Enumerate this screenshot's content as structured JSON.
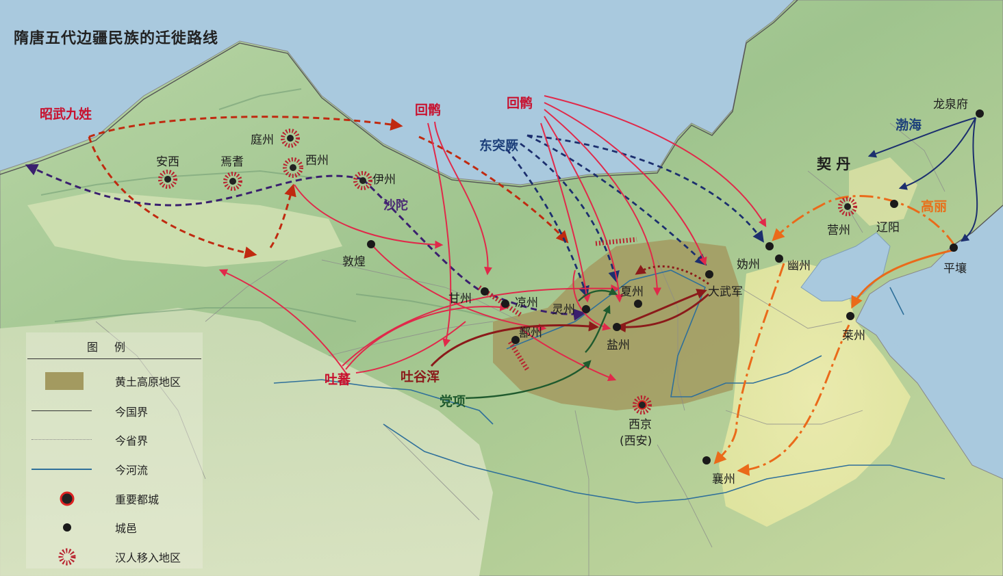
{
  "title": "隋唐五代边疆民族的迁徙路线",
  "colors": {
    "route_red": "#e0294a",
    "route_darkred": "#c02a10",
    "route_purple": "#3a1f6e",
    "route_navy": "#1c2f6e",
    "route_orange": "#ea6a1a",
    "route_brown": "#8b1a1a",
    "route_green": "#1f5a2e",
    "loess": "#a39a60"
  },
  "peoples": {
    "zhaowu": "昭武九姓",
    "huihu1": "回鹘",
    "huihu2": "回鹘",
    "dongtujue": "东突厥",
    "shatuo": "沙陀",
    "tubo": "吐蕃",
    "tuguhun": "吐谷浑",
    "dangxiang": "党项",
    "bohai": "渤海",
    "qidan": "契 丹",
    "gaoli": "高丽"
  },
  "places": {
    "tingzhou": "庭州",
    "anxi": "安西",
    "yanqi": "焉耆",
    "xizhou": "西州",
    "yizhou": "伊州",
    "dunhuang": "敦煌",
    "ganzhou": "甘州",
    "liangzhou": "凉州",
    "lingzhou": "灵州",
    "xiazhou": "夏州",
    "yanzhou": "盐州",
    "shanzhou": "鄯州",
    "dawujun": "大武军",
    "guizhou": "妫州",
    "youzhou": "幽州",
    "yingzhou": "营州",
    "liaoyang": "辽阳",
    "longquanfu": "龙泉府",
    "pingrang": "平壤",
    "laizhou": "莱州",
    "xiangzhou": "襄州",
    "xijing": "西京",
    "xijing_note": "(西安)"
  },
  "legend": {
    "title": "图例",
    "items": [
      {
        "label": "黄土高原地区",
        "symbol": "loess-area"
      },
      {
        "label": "今国界",
        "symbol": "national-border"
      },
      {
        "label": "今省界",
        "symbol": "provincial-border"
      },
      {
        "label": "今河流",
        "symbol": "river"
      },
      {
        "label": "重要都城",
        "symbol": "capital"
      },
      {
        "label": "城邑",
        "symbol": "city"
      },
      {
        "label": "汉人移入地区",
        "symbol": "han-migration"
      }
    ]
  }
}
